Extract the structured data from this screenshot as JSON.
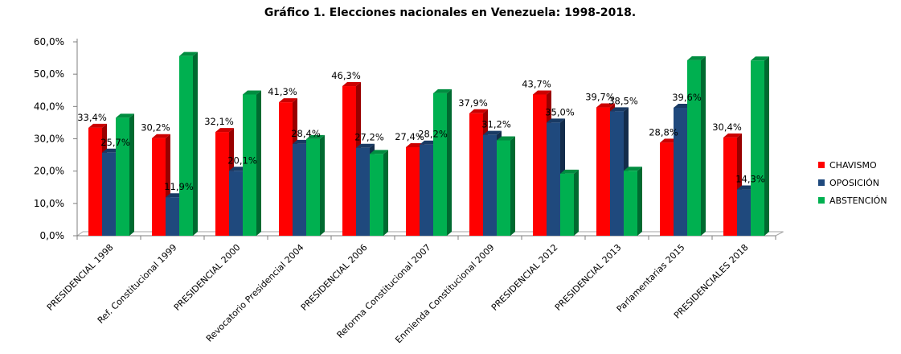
{
  "chart_data": {
    "type": "bar",
    "title": "Gráfico 1. Elecciones nacionales  en Venezuela: 1998-2018.",
    "categories": [
      "PRESIDENCIAL 1998",
      "Ref. Constitucional 1999",
      "PRESIDENCIAL 2000",
      "Revocatorio Presidencial 2004",
      "PRESIDENCIAL 2006",
      "Reforma Constitucional 2007",
      "Enmienda Constitucional 2009",
      "PRESIDENCIAL 2012",
      "PRESIDENCIAL 2013",
      "Parlamentarias 2015",
      "PRESIDENCIALES  2018"
    ],
    "series": [
      {
        "name": "CHAVISMO",
        "color": "#ff0000",
        "values": [
          33.4,
          30.2,
          32.1,
          41.3,
          46.3,
          27.4,
          37.9,
          43.7,
          39.7,
          28.8,
          30.4
        ]
      },
      {
        "name": "OPOSICIÓN",
        "color": "#1f497d",
        "values": [
          25.7,
          11.9,
          20.1,
          28.4,
          27.2,
          28.2,
          31.2,
          35.0,
          38.5,
          39.6,
          14.3
        ]
      },
      {
        "name": "ABSTENCIÓN",
        "color": "#00b050",
        "values": [
          36.5,
          55.6,
          43.7,
          29.9,
          25.3,
          44.1,
          29.5,
          19.2,
          20.1,
          54.3,
          54.2
        ]
      }
    ],
    "data_labels": [
      [
        "33,4%",
        "30,2%",
        "32,1%",
        "41,3%",
        "46,3%",
        "27,4%",
        "37,9%",
        "43,7%",
        "39,7%",
        "28,8%",
        "30,4%"
      ],
      [
        "25,7%",
        "11,9%",
        "20,1%",
        "28,4%",
        "27,2%",
        "28,2%",
        "31,2%",
        "35,0%",
        "38,5%",
        "39,6%",
        "14,3%"
      ]
    ],
    "ylim": [
      0,
      60
    ],
    "yticks": [
      "0,0%",
      "10,0%",
      "20,0%",
      "30,0%",
      "40,0%",
      "50,0%",
      "60,0%"
    ],
    "legend_position": "right",
    "grid": false
  }
}
